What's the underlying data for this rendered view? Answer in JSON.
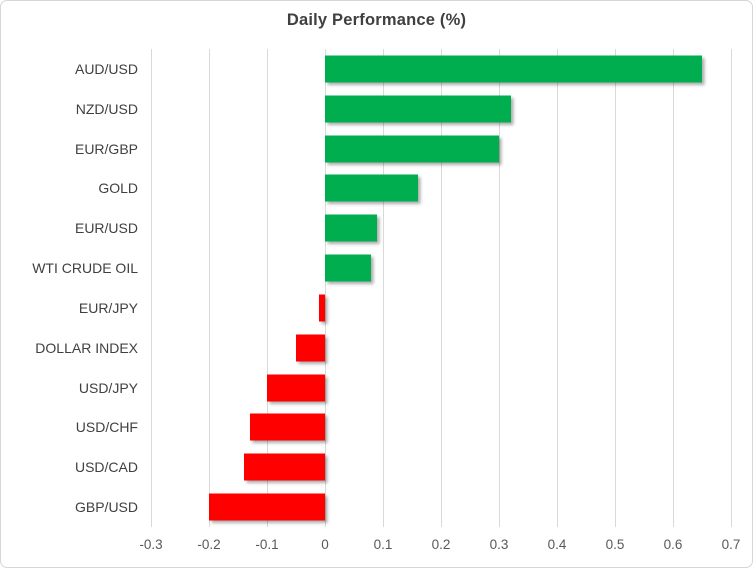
{
  "chart_data": {
    "type": "bar",
    "orientation": "horizontal",
    "title": "Daily Performance (%)",
    "categories": [
      "AUD/USD",
      "NZD/USD",
      "EUR/GBP",
      "GOLD",
      "EUR/USD",
      "WTI CRUDE OIL",
      "EUR/JPY",
      "DOLLAR INDEX",
      "USD/JPY",
      "USD/CHF",
      "USD/CAD",
      "GBP/USD"
    ],
    "values": [
      0.65,
      0.32,
      0.3,
      0.16,
      0.09,
      0.08,
      -0.01,
      -0.05,
      -0.1,
      -0.13,
      -0.14,
      -0.2
    ],
    "xlim": [
      -0.3,
      0.7
    ],
    "x_ticks": [
      "-0.3",
      "-0.2",
      "-0.1",
      "0",
      "0.1",
      "0.2",
      "0.3",
      "0.4",
      "0.5",
      "0.6",
      "0.7"
    ],
    "x_tick_values": [
      -0.3,
      -0.2,
      -0.1,
      0,
      0.1,
      0.2,
      0.3,
      0.4,
      0.5,
      0.6,
      0.7
    ],
    "grid": "vertical-on",
    "legend": "none",
    "colors": {
      "positive_bar": "#00AE50",
      "negative_bar": "#FF0000",
      "gridline": "#D9D9D9",
      "title_text": "#404040",
      "category_text": "#404040",
      "tick_text": "#595959",
      "frame_border": "#D6D6D6",
      "background": "#FFFFFF"
    }
  }
}
